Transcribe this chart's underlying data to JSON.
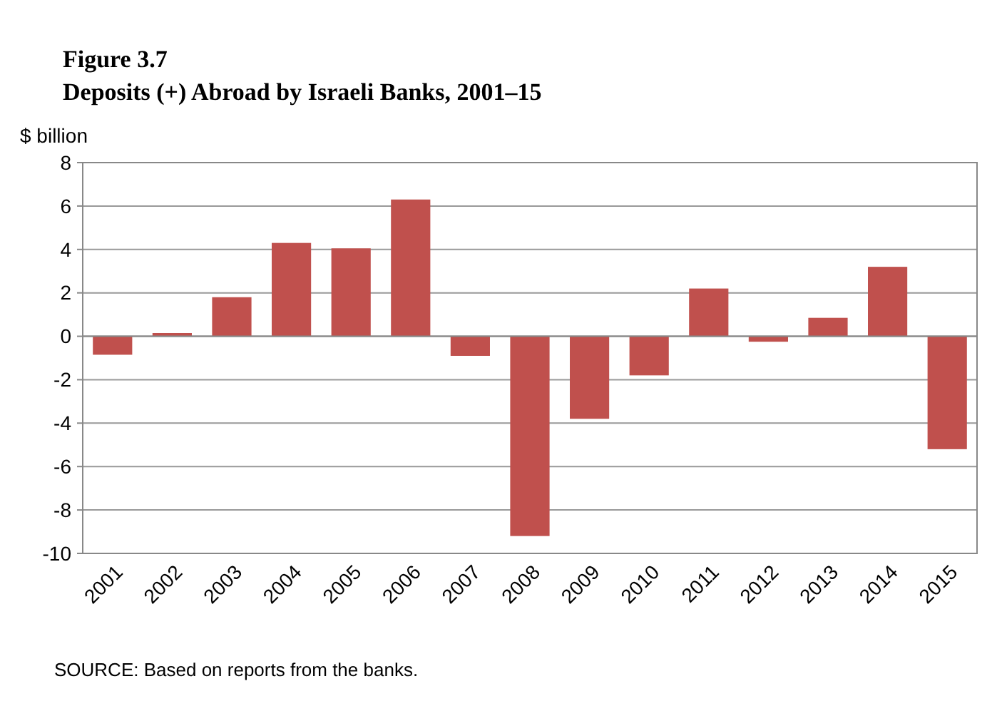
{
  "chart_data": {
    "type": "bar",
    "title": "Figure 3.7",
    "subtitle": "Deposits (+) Abroad by Israeli Banks, 2001–15",
    "ylabel": "$ billion",
    "categories": [
      "2001",
      "2002",
      "2003",
      "2004",
      "2005",
      "2006",
      "2007",
      "2008",
      "2009",
      "2010",
      "2011",
      "2012",
      "2013",
      "2014",
      "2015"
    ],
    "values": [
      -0.85,
      0.15,
      1.8,
      4.3,
      4.05,
      6.3,
      -0.9,
      -9.2,
      -3.8,
      -1.8,
      2.2,
      -0.25,
      0.85,
      3.2,
      -5.2
    ],
    "color": "#c0504d",
    "ylim": [
      -10,
      8
    ],
    "yticks": [
      -10,
      -8,
      -6,
      -4,
      -2,
      0,
      2,
      4,
      6,
      8
    ],
    "grid": "y",
    "annotations": [
      "SOURCE: Based on reports from the banks."
    ]
  }
}
